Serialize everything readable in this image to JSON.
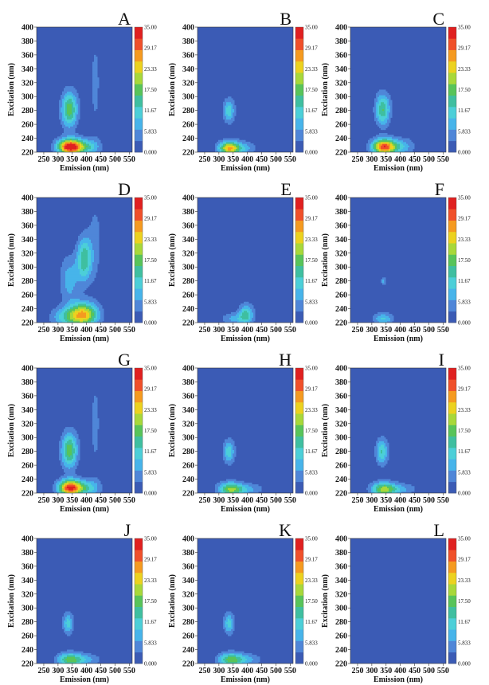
{
  "chart_data": {
    "type": "heatmap",
    "xlabel": "Emission (nm)",
    "ylabel": "Excitation (nm)",
    "x_ticks": [
      "250",
      "300",
      "350",
      "400",
      "450",
      "500",
      "550"
    ],
    "y_ticks": [
      "220",
      "240",
      "260",
      "280",
      "300",
      "320",
      "340",
      "360",
      "380",
      "400"
    ],
    "xlim": [
      225,
      560
    ],
    "ylim": [
      220,
      400
    ],
    "colorbar_labels": [
      "35.00",
      "29.17",
      "23.33",
      "17.50",
      "11.67",
      "5.833",
      "0.000"
    ],
    "color_range": [
      0,
      35
    ],
    "colors": [
      "#3b5bb5",
      "#4f86d8",
      "#47b4ea",
      "#4ccfd8",
      "#3fbfa0",
      "#58c45a",
      "#a8d83a",
      "#ecd21f",
      "#f59a20",
      "#f0502a",
      "#e02020"
    ],
    "panels": [
      {
        "label": "A",
        "peaks": [
          {
            "em": 340,
            "ex": 282,
            "value": 18,
            "sx": 20,
            "sy": 18
          },
          {
            "em": 340,
            "ex": 228,
            "value": 33,
            "sx": 30,
            "sy": 8
          },
          {
            "em": 395,
            "ex": 228,
            "value": 12,
            "sx": 35,
            "sy": 8
          },
          {
            "em": 430,
            "ex": 320,
            "value": 4,
            "sx": 15,
            "sy": 60
          }
        ]
      },
      {
        "label": "B",
        "peaks": [
          {
            "em": 335,
            "ex": 280,
            "value": 12,
            "sx": 14,
            "sy": 12
          },
          {
            "em": 335,
            "ex": 226,
            "value": 25,
            "sx": 25,
            "sy": 7
          },
          {
            "em": 385,
            "ex": 226,
            "value": 8,
            "sx": 30,
            "sy": 7
          }
        ]
      },
      {
        "label": "C",
        "peaks": [
          {
            "em": 338,
            "ex": 282,
            "value": 16,
            "sx": 18,
            "sy": 16
          },
          {
            "em": 340,
            "ex": 228,
            "value": 28,
            "sx": 28,
            "sy": 8
          },
          {
            "em": 390,
            "ex": 228,
            "value": 10,
            "sx": 35,
            "sy": 8
          },
          {
            "em": 430,
            "ex": 320,
            "value": 3,
            "sx": 15,
            "sy": 60
          }
        ]
      },
      {
        "label": "D",
        "peaks": [
          {
            "em": 392,
            "ex": 312,
            "value": 15,
            "sx": 18,
            "sy": 22
          },
          {
            "em": 390,
            "ex": 232,
            "value": 24,
            "sx": 35,
            "sy": 12
          },
          {
            "em": 340,
            "ex": 282,
            "value": 8,
            "sx": 25,
            "sy": 25
          },
          {
            "em": 330,
            "ex": 228,
            "value": 10,
            "sx": 40,
            "sy": 10
          },
          {
            "em": 430,
            "ex": 340,
            "value": 4,
            "sx": 20,
            "sy": 50
          }
        ]
      },
      {
        "label": "E",
        "peaks": [
          {
            "em": 395,
            "ex": 232,
            "value": 14,
            "sx": 18,
            "sy": 10
          },
          {
            "em": 350,
            "ex": 226,
            "value": 7,
            "sx": 30,
            "sy": 6
          },
          {
            "em": 395,
            "ex": 310,
            "value": 3,
            "sx": 15,
            "sy": 20
          }
        ]
      },
      {
        "label": "F",
        "peaks": [
          {
            "em": 340,
            "ex": 226,
            "value": 10,
            "sx": 25,
            "sy": 6
          },
          {
            "em": 340,
            "ex": 280,
            "value": 9,
            "sx": 5,
            "sy": 4
          }
        ]
      },
      {
        "label": "G",
        "peaks": [
          {
            "em": 340,
            "ex": 282,
            "value": 18,
            "sx": 20,
            "sy": 18
          },
          {
            "em": 340,
            "ex": 228,
            "value": 30,
            "sx": 28,
            "sy": 8
          },
          {
            "em": 395,
            "ex": 228,
            "value": 12,
            "sx": 35,
            "sy": 8
          },
          {
            "em": 430,
            "ex": 320,
            "value": 4,
            "sx": 15,
            "sy": 60
          }
        ]
      },
      {
        "label": "H",
        "peaks": [
          {
            "em": 335,
            "ex": 280,
            "value": 12,
            "sx": 14,
            "sy": 12
          },
          {
            "em": 340,
            "ex": 226,
            "value": 18,
            "sx": 30,
            "sy": 7
          },
          {
            "em": 400,
            "ex": 226,
            "value": 7,
            "sx": 40,
            "sy": 6
          }
        ]
      },
      {
        "label": "I",
        "peaks": [
          {
            "em": 335,
            "ex": 280,
            "value": 13,
            "sx": 15,
            "sy": 13
          },
          {
            "em": 340,
            "ex": 226,
            "value": 19,
            "sx": 30,
            "sy": 7
          },
          {
            "em": 400,
            "ex": 226,
            "value": 7,
            "sx": 40,
            "sy": 6
          }
        ]
      },
      {
        "label": "J",
        "peaks": [
          {
            "em": 335,
            "ex": 278,
            "value": 11,
            "sx": 13,
            "sy": 11
          },
          {
            "em": 340,
            "ex": 226,
            "value": 17,
            "sx": 30,
            "sy": 7
          },
          {
            "em": 400,
            "ex": 226,
            "value": 7,
            "sx": 35,
            "sy": 6
          }
        ]
      },
      {
        "label": "K",
        "peaks": [
          {
            "em": 335,
            "ex": 278,
            "value": 11,
            "sx": 13,
            "sy": 11
          },
          {
            "em": 340,
            "ex": 226,
            "value": 17,
            "sx": 30,
            "sy": 7
          },
          {
            "em": 400,
            "ex": 226,
            "value": 7,
            "sx": 35,
            "sy": 6
          }
        ]
      },
      {
        "label": "L",
        "peaks": [
          {
            "em": 360,
            "ex": 221,
            "value": 3,
            "sx": 40,
            "sy": 3
          }
        ]
      }
    ]
  }
}
